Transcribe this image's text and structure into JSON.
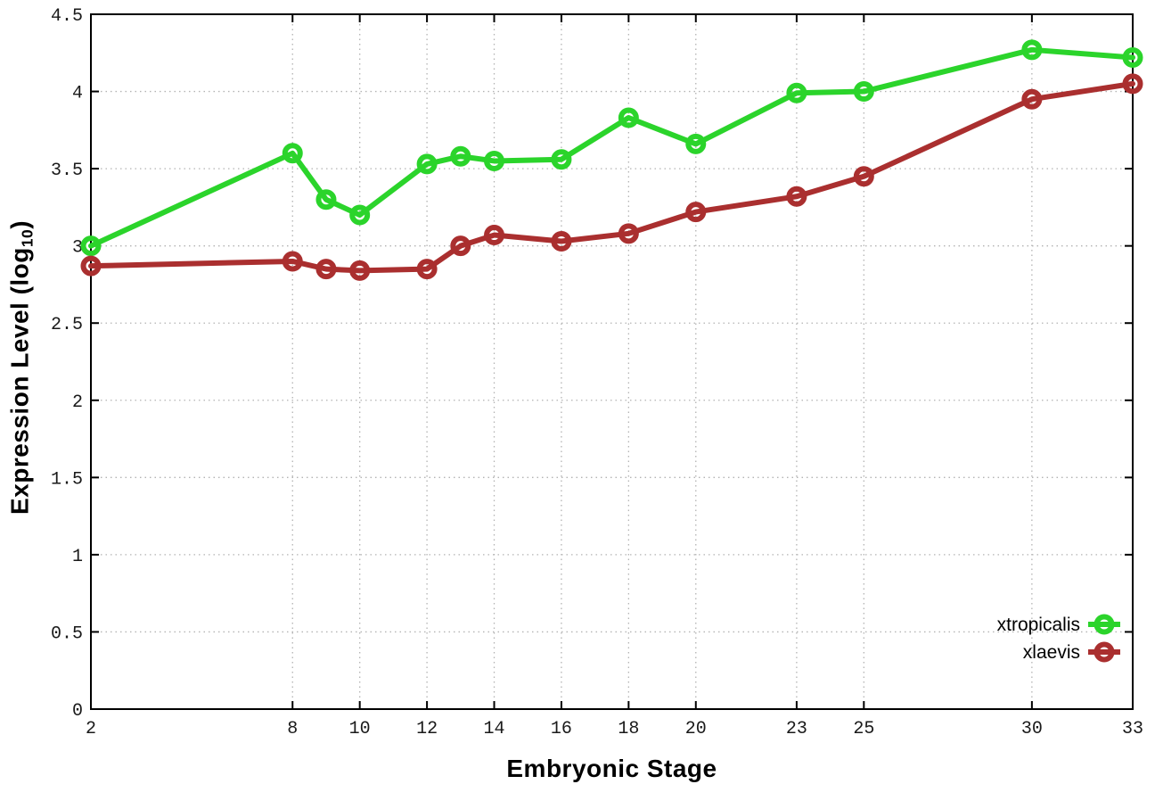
{
  "chart_data": {
    "type": "line",
    "title": "",
    "xlabel": "Embryonic Stage",
    "ylabel": "Expression Level (log10)",
    "ylabel_parts": {
      "base": "Expression Level (log",
      "sub": "10",
      "close": ")"
    },
    "x": [
      2,
      8,
      9,
      10,
      12,
      13,
      14,
      16,
      18,
      20,
      23,
      25,
      30,
      33
    ],
    "series": [
      {
        "name": "xtropicalis",
        "color": "#2bd42b",
        "values": [
          3.0,
          3.6,
          3.3,
          3.2,
          3.53,
          3.58,
          3.55,
          3.56,
          3.83,
          3.66,
          3.99,
          4.0,
          4.27,
          4.22
        ]
      },
      {
        "name": "xlaevis",
        "color": "#aa2f2f",
        "values": [
          2.87,
          2.9,
          2.85,
          2.84,
          2.85,
          3.0,
          3.07,
          3.03,
          3.08,
          3.22,
          3.32,
          3.45,
          3.95,
          4.05
        ]
      }
    ],
    "xlim": [
      2,
      33
    ],
    "ylim": [
      0,
      4.5
    ],
    "xticks": [
      2,
      8,
      10,
      12,
      14,
      16,
      18,
      20,
      23,
      25,
      30,
      33
    ],
    "xtick_labels": [
      "2",
      "8",
      "10",
      "12",
      "14",
      "16",
      "18",
      "20",
      "23",
      "25",
      "30",
      "33"
    ],
    "yticks": [
      0,
      0.5,
      1,
      1.5,
      2,
      2.5,
      3,
      3.5,
      4,
      4.5
    ],
    "ytick_labels": [
      "0",
      "0.5",
      "1",
      "1.5",
      "2",
      "2.5",
      "3",
      "3.5",
      "4",
      "4.5"
    ],
    "grid": true,
    "legend_position": "bottom-right",
    "colors": {
      "axis": "#000000",
      "grid": "#b3b3b3",
      "tick_text": "#1a1a1a",
      "background": "#ffffff"
    }
  }
}
